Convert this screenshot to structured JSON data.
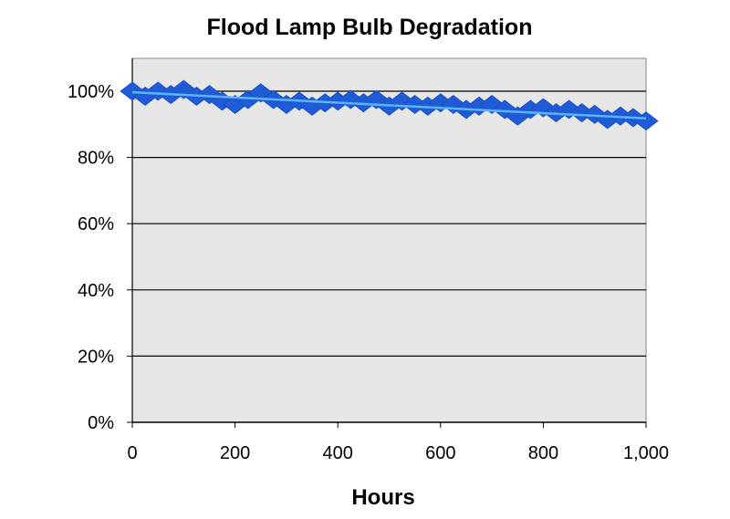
{
  "chart_data": {
    "type": "scatter",
    "title": "Flood Lamp Bulb Degradation",
    "xlabel": "Hours",
    "ylabel": "",
    "xlim": [
      0,
      1000
    ],
    "ylim": [
      0,
      1.1
    ],
    "x_ticks": [
      0,
      200,
      400,
      600,
      800,
      1000
    ],
    "x_tick_labels": [
      "0",
      "200",
      "400",
      "600",
      "800",
      "1,000"
    ],
    "y_ticks": [
      0,
      0.2,
      0.4,
      0.6,
      0.8,
      1.0
    ],
    "y_tick_labels": [
      "0%",
      "20%",
      "40%",
      "60%",
      "80%",
      "100%"
    ],
    "grid": true,
    "legend": "none",
    "series": [
      {
        "x": [
          0,
          25,
          50,
          75,
          100,
          125,
          150,
          175,
          200,
          225,
          250,
          275,
          300,
          325,
          350,
          375,
          400,
          425,
          450,
          475,
          500,
          525,
          550,
          575,
          600,
          625,
          650,
          675,
          700,
          725,
          750,
          775,
          800,
          825,
          850,
          875,
          900,
          925,
          950,
          975,
          1000
        ],
        "y": [
          1.0,
          0.985,
          1.0,
          0.99,
          1.005,
          0.985,
          0.99,
          0.97,
          0.96,
          0.975,
          0.995,
          0.975,
          0.96,
          0.97,
          0.955,
          0.965,
          0.97,
          0.975,
          0.965,
          0.975,
          0.955,
          0.97,
          0.96,
          0.955,
          0.965,
          0.96,
          0.945,
          0.955,
          0.96,
          0.945,
          0.925,
          0.945,
          0.95,
          0.935,
          0.945,
          0.935,
          0.93,
          0.915,
          0.925,
          0.92,
          0.91
        ]
      }
    ],
    "trendline": {
      "x": [
        0,
        1000
      ],
      "y": [
        0.997,
        0.918
      ]
    },
    "colors": {
      "marker": "#1f5bd6",
      "trend": "#5bb4ff",
      "plot_bg": "#e6e6e6",
      "grid": "#000000"
    }
  }
}
